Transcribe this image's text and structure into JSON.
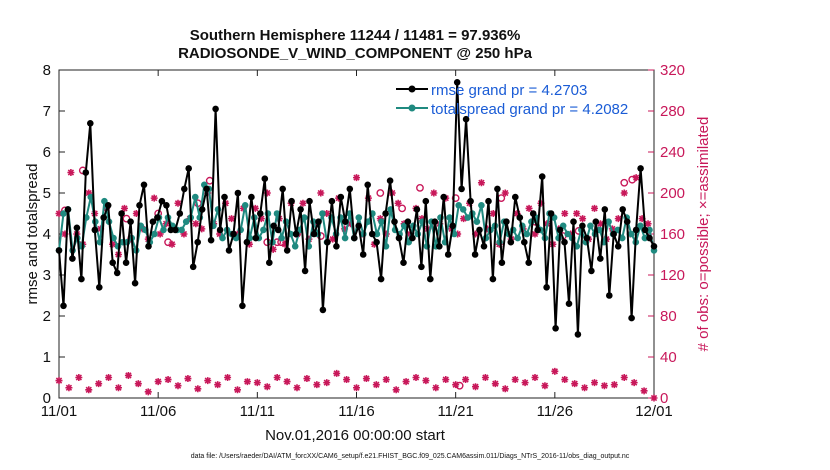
{
  "chart_data": {
    "type": "line",
    "title": "Southern Hemisphere 11244 / 11481 = 97.936%",
    "subtitle": "RADIOSONDE_V_WIND_COMPONENT @ 250 hPa",
    "xlabel": "Nov.01,2016 00:00:00 start",
    "ylabel": "rmse and totalspread",
    "ylabel_right": "# of obs: o=possible; ×=assimilated",
    "xlim": [
      0,
      30
    ],
    "ylim": [
      0,
      8
    ],
    "ylim_right": [
      0,
      320
    ],
    "x_ticks": [
      0,
      5,
      10,
      15,
      20,
      25,
      30
    ],
    "x_tick_labels": [
      "11/01",
      "11/06",
      "11/11",
      "11/16",
      "11/21",
      "11/26",
      "12/01"
    ],
    "y_ticks": [
      "0",
      "1",
      "2",
      "3",
      "4",
      "5",
      "6",
      "7",
      "8"
    ],
    "y_ticks_right": [
      "0",
      "40",
      "80",
      "120",
      "160",
      "200",
      "240",
      "280",
      "320"
    ],
    "legend": [
      {
        "label": "rmse grand pr = 4.2703",
        "color": "#000000"
      },
      {
        "label": "totalspread grand pr = 4.2082",
        "color": "#1f8a80"
      }
    ],
    "legend_position": "top-right",
    "footnote": "data file: /Users/raeder/DAI/ATM_forcXX/CAM6_setup/f.e21.FHIST_BGC.f09_025.CAM6assim.011/Diags_NTrS_2016-11/obs_diag_output.nc",
    "series": [
      {
        "name": "rmse",
        "color": "#000000",
        "values": [
          3.6,
          2.25,
          4.6,
          3.4,
          4.15,
          2.9,
          5.5,
          6.7,
          4.1,
          2.7,
          4.4,
          4.7,
          3.3,
          3.05,
          4.5,
          3.3,
          4.3,
          2.8,
          4.7,
          5.2,
          3.7,
          4.3,
          4.4,
          4.8,
          4.7,
          4.1,
          4.1,
          4.5,
          5.1,
          5.6,
          3.2,
          3.8,
          4.6,
          5.1,
          3.85,
          7.05,
          4.1,
          4.9,
          3.6,
          4.0,
          5.0,
          2.25,
          3.8,
          4.9,
          3.9,
          4.5,
          5.35,
          3.3,
          4.2,
          4.1,
          5.1,
          3.6,
          4.8,
          4.0,
          4.6,
          3.1,
          4.8,
          4.0,
          4.3,
          2.15,
          3.8,
          4.8,
          3.7,
          4.9,
          4.3,
          5.1,
          3.9,
          4.2,
          3.5,
          5.2,
          4.0,
          3.8,
          2.9,
          4.5,
          5.3,
          4.3,
          3.9,
          3.3,
          4.3,
          3.9,
          4.6,
          3.2,
          4.8,
          2.9,
          4.3,
          3.7,
          4.9,
          3.5,
          4.2,
          7.7,
          5.1,
          6.8,
          4.8,
          3.5,
          4.1,
          3.7,
          4.8,
          2.9,
          5.1,
          3.3,
          4.3,
          3.8,
          4.9,
          4.4,
          3.8,
          3.3,
          4.5,
          4.1,
          5.4,
          2.7,
          4.5,
          1.7,
          4.1,
          3.8,
          2.3,
          4.3,
          1.55,
          4.2,
          3.9,
          3.1,
          4.3,
          3.4,
          4.6,
          2.5,
          4.0,
          3.7,
          4.6,
          4.3,
          1.95,
          4.1,
          5.6,
          4.1,
          3.9,
          3.7
        ]
      },
      {
        "name": "totalspread",
        "color": "#1f8a80",
        "values": [
          3.6,
          4.5,
          4.6,
          3.6,
          3.9,
          3.7,
          4.4,
          4.9,
          4.3,
          3.8,
          4.8,
          4.3,
          3.9,
          3.7,
          3.8,
          3.8,
          3.9,
          3.6,
          4.2,
          4.1,
          3.8,
          4.0,
          4.4,
          4.1,
          4.4,
          4.2,
          4.1,
          4.1,
          4.3,
          4.4,
          4.9,
          4.4,
          5.2,
          5.1,
          4.2,
          4.6,
          3.9,
          4.1,
          4.0,
          3.9,
          4.1,
          4.7,
          3.9,
          4.4,
          3.9,
          4.1,
          4.5,
          3.8,
          4.5,
          3.9,
          4.3,
          4.0,
          3.7,
          4.1,
          4.4,
          3.7,
          4.3,
          4.0,
          4.5,
          3.8,
          4.4,
          4.0,
          4.4,
          3.9,
          4.5,
          3.9,
          4.4,
          4.0,
          4.3,
          4.5,
          4.0,
          4.3,
          3.7,
          4.6,
          4.1,
          4.0,
          4.2,
          3.8,
          4.2,
          4.0,
          4.3,
          3.7,
          4.3,
          3.7,
          4.4,
          3.8,
          4.4,
          4.0,
          4.7,
          4.6,
          4.4,
          4.5,
          4.3,
          4.7,
          3.9,
          4.1,
          4.2,
          3.8,
          4.3,
          4.0,
          4.1,
          3.9,
          4.2,
          4.0,
          4.3,
          4.4,
          4.1,
          3.9,
          4.5,
          4.4,
          3.9,
          4.2,
          4.0,
          3.9,
          3.7,
          4.1,
          3.8,
          4.2,
          4.0,
          4.1,
          3.8,
          4.3,
          4.0,
          4.1,
          3.9,
          4.4,
          4.0,
          3.8,
          4.2,
          3.9,
          4.1,
          3.6
        ]
      },
      {
        "name": "possible",
        "axis": "right",
        "marker": "circle",
        "color": "#c8185a",
        "x": [
          0.3,
          1.2,
          3.4,
          5.0,
          5.5,
          7.0,
          7.6,
          10.5,
          11.0,
          11.2,
          12.0,
          13.2,
          16.2,
          17.3,
          18.2,
          20.0,
          22.3,
          24.0,
          25.4,
          26.2,
          28.5,
          28.9
        ],
        "values": [
          183,
          222,
          175,
          180,
          152,
          190,
          212,
          152,
          152,
          152,
          160,
          158,
          200,
          185,
          205,
          195,
          195,
          172,
          158,
          163,
          210,
          213
        ]
      },
      {
        "name": "assimilated",
        "axis": "right",
        "marker": "x",
        "color": "#c8185a",
        "x": [
          0.0,
          0.3,
          0.6,
          0.9,
          1.2,
          1.5,
          1.8,
          2.1,
          2.4,
          2.7,
          3.0,
          3.3,
          3.6,
          3.9,
          4.2,
          4.5,
          4.8,
          5.1,
          5.4,
          5.7,
          6.0,
          6.3,
          6.6,
          6.9,
          7.2,
          7.5,
          7.8,
          8.1,
          8.4,
          8.7,
          9.0,
          9.3,
          9.6,
          9.9,
          10.2,
          10.5,
          10.8,
          11.1,
          11.4,
          11.7,
          12.0,
          12.3,
          12.6,
          12.9,
          13.2,
          13.5,
          13.8,
          14.1,
          14.4,
          14.7,
          15.0,
          15.3,
          15.6,
          15.9,
          16.2,
          16.5,
          16.8,
          17.1,
          17.4,
          17.7,
          18.0,
          18.3,
          18.6,
          18.9,
          19.2,
          19.5,
          19.8,
          20.1,
          20.4,
          20.7,
          21.0,
          21.3,
          21.6,
          21.9,
          22.2,
          22.5,
          22.8,
          23.1,
          23.4,
          23.7,
          24.0,
          24.3,
          24.6,
          24.9,
          25.2,
          25.5,
          25.8,
          26.1,
          26.4,
          26.7,
          27.0,
          27.3,
          27.6,
          27.9,
          28.2,
          28.5,
          28.8,
          29.1,
          29.4,
          29.7
        ],
        "values": [
          180,
          160,
          220,
          160,
          150,
          200,
          180,
          165,
          185,
          150,
          140,
          185,
          155,
          180,
          165,
          155,
          195,
          160,
          170,
          150,
          190,
          160,
          175,
          170,
          165,
          200,
          170,
          160,
          190,
          175,
          160,
          185,
          150,
          185,
          175,
          200,
          145,
          175,
          150,
          190,
          160,
          190,
          155,
          170,
          200,
          180,
          155,
          195,
          165,
          170,
          215,
          160,
          195,
          150,
          175,
          160,
          200,
          190,
          170,
          160,
          185,
          175,
          165,
          200,
          170,
          195,
          165,
          160,
          175,
          190,
          160,
          210,
          165,
          180,
          150,
          200,
          155,
          180,
          165,
          185,
          160,
          190,
          170,
          150,
          165,
          180,
          160,
          180,
          175,
          155,
          185,
          170,
          155,
          165,
          175,
          200,
          160,
          215,
          175,
          170
        ]
      },
      {
        "name": "possible_low",
        "axis": "right",
        "marker": "circle",
        "color": "#c8185a",
        "x": [
          20.2
        ],
        "values": [
          12
        ]
      },
      {
        "name": "assimilated_low",
        "axis": "right",
        "marker": "x",
        "color": "#c8185a",
        "x": [
          0.0,
          0.5,
          1.0,
          1.5,
          2.0,
          2.5,
          3.0,
          3.5,
          4.0,
          4.5,
          5.0,
          5.5,
          6.0,
          6.5,
          7.0,
          7.5,
          8.0,
          8.5,
          9.0,
          9.5,
          10.0,
          10.5,
          11.0,
          11.5,
          12.0,
          12.5,
          13.0,
          13.5,
          14.0,
          14.5,
          15.0,
          15.5,
          16.0,
          16.5,
          17.0,
          17.5,
          18.0,
          18.5,
          19.0,
          19.5,
          20.0,
          20.5,
          21.0,
          21.5,
          22.0,
          22.5,
          23.0,
          23.5,
          24.0,
          24.5,
          25.0,
          25.5,
          26.0,
          26.5,
          27.0,
          27.5,
          28.0,
          28.5,
          29.0,
          29.5,
          30.0
        ],
        "values": [
          17,
          10,
          20,
          8,
          14,
          20,
          10,
          22,
          14,
          6,
          16,
          18,
          12,
          19,
          9,
          17,
          13,
          20,
          8,
          16,
          15,
          11,
          20,
          16,
          10,
          19,
          13,
          15,
          24,
          18,
          10,
          19,
          13,
          18,
          8,
          16,
          20,
          17,
          10,
          18,
          13,
          18,
          11,
          20,
          14,
          9,
          18,
          15,
          20,
          12,
          26,
          18,
          14,
          10,
          15,
          12,
          13,
          20,
          15,
          7,
          0
        ]
      }
    ]
  }
}
